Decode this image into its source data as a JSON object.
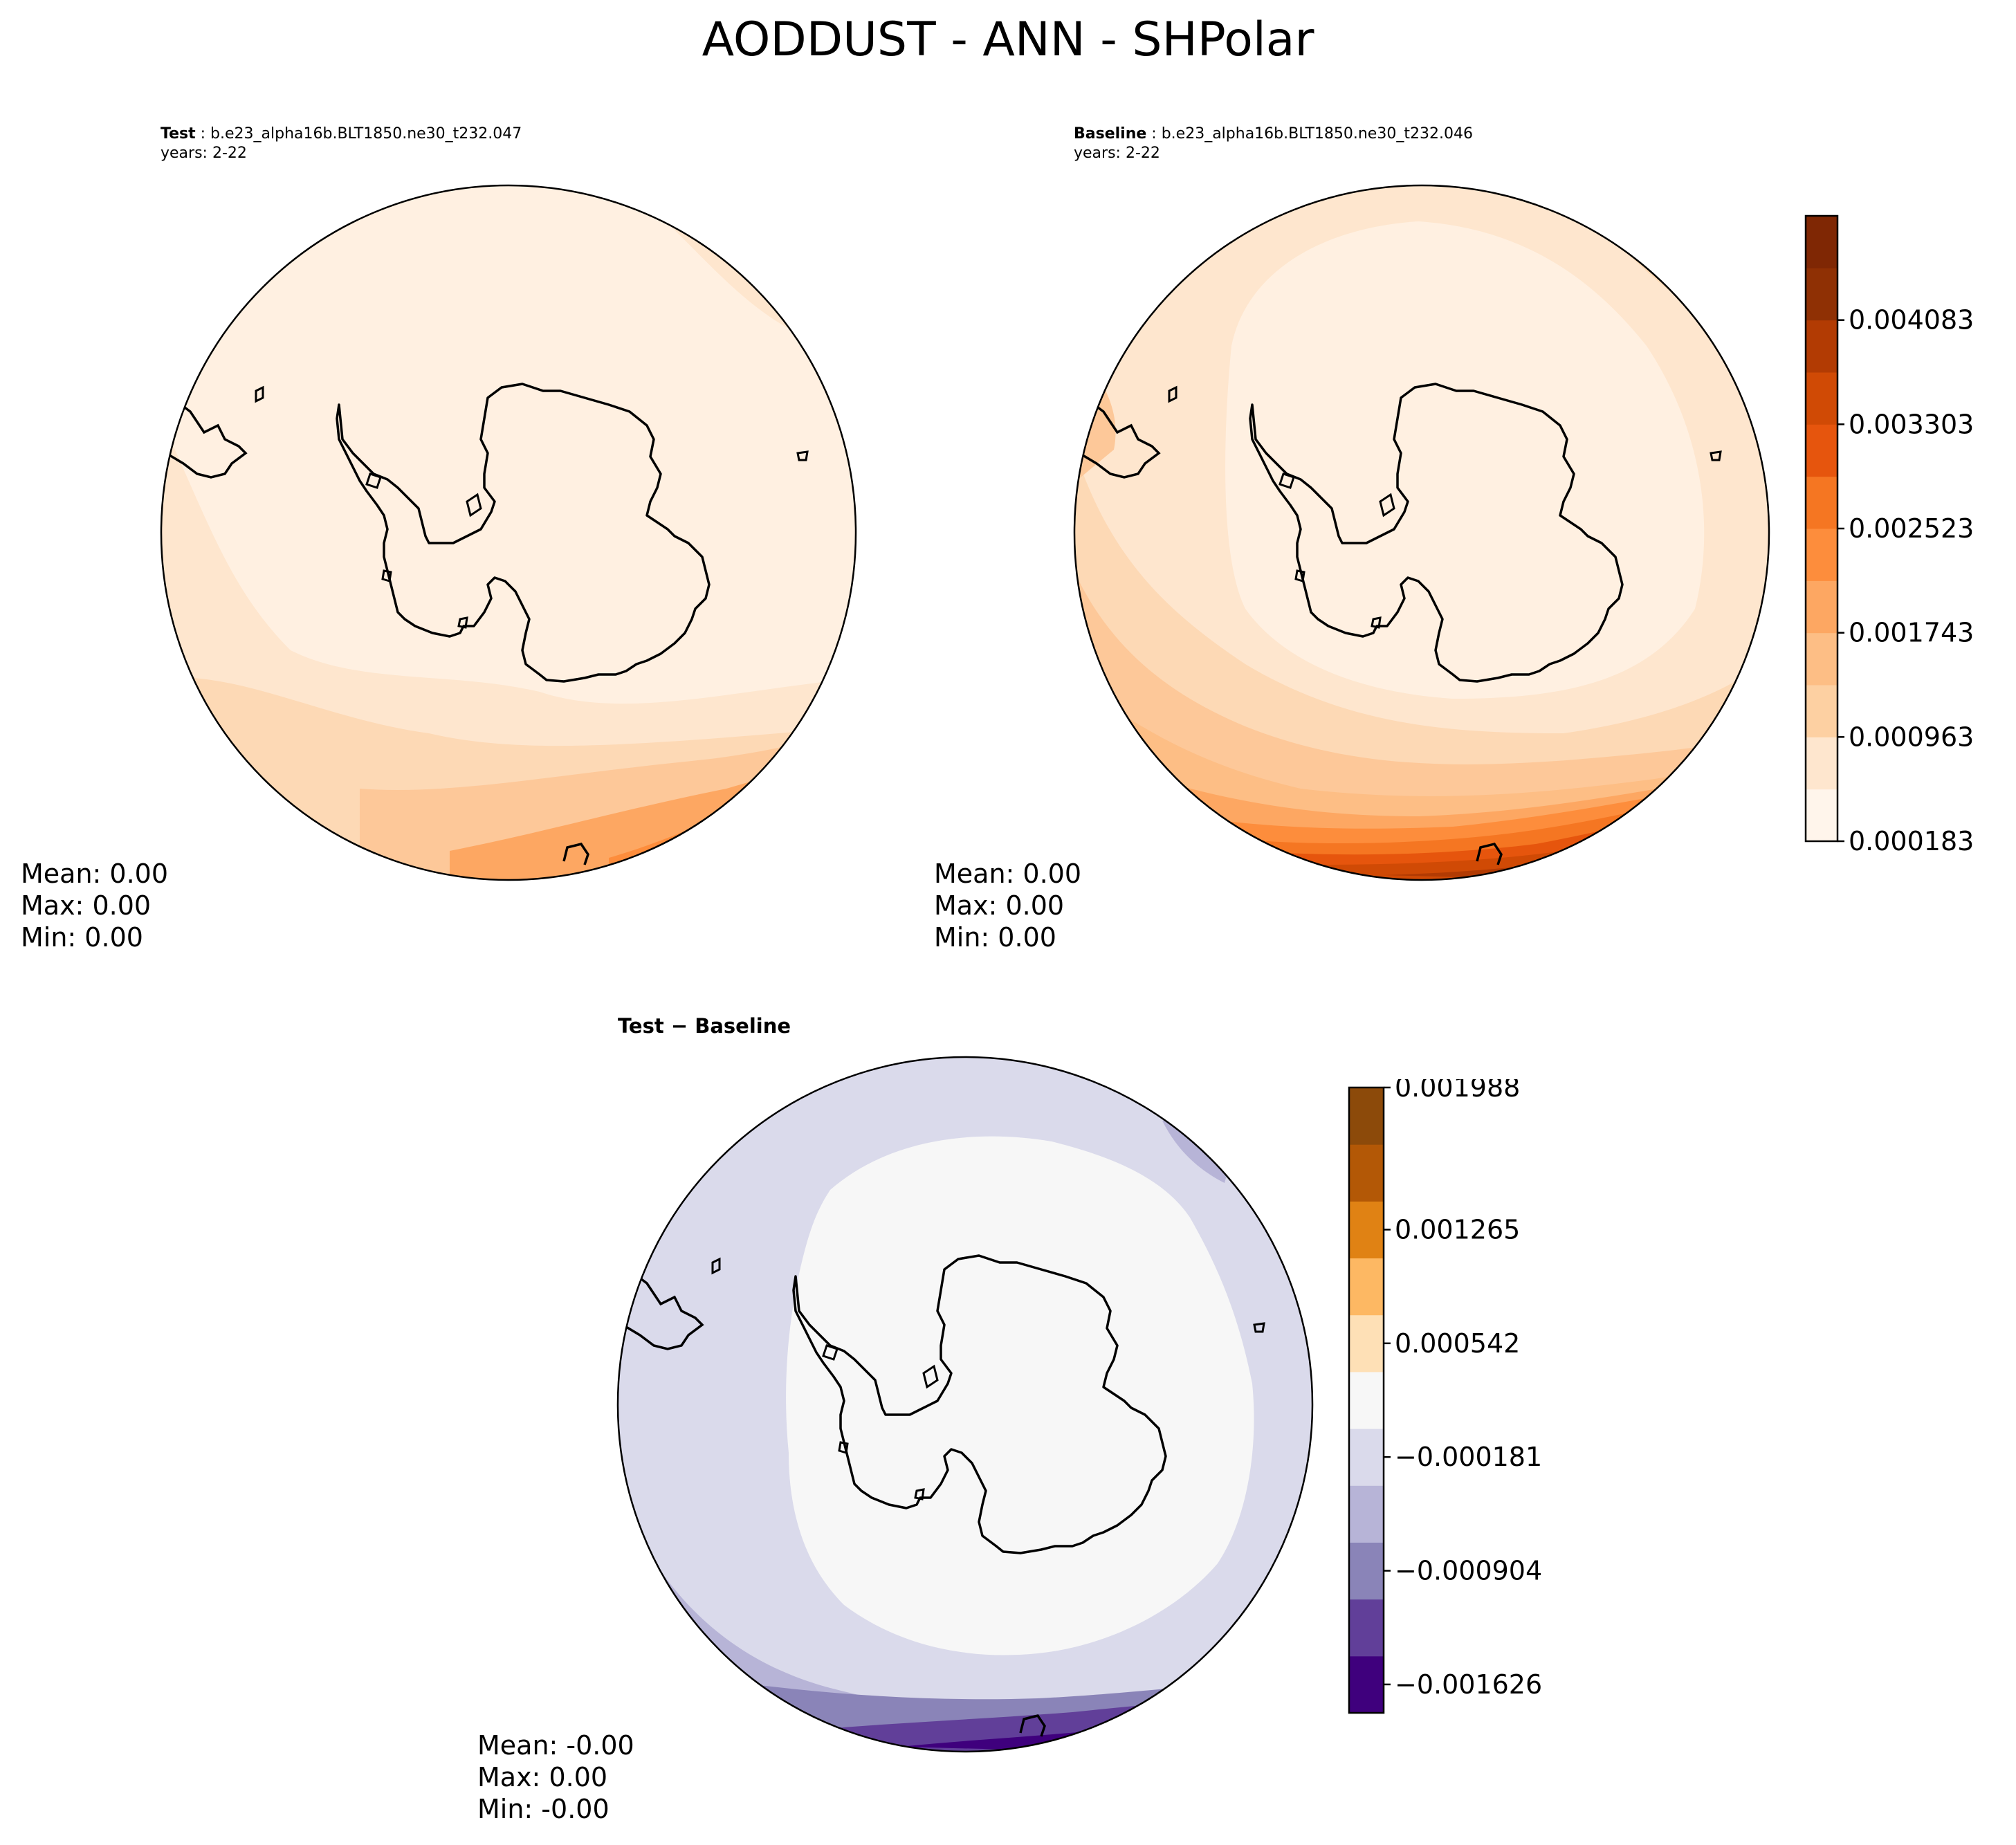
{
  "figure": {
    "title": "AODDUST - ANN - SHPolar"
  },
  "panels": {
    "test": {
      "label": "Test",
      "case": "b.e23_alpha16b.BLT1850.ne30_t232.047",
      "years": "years: 2-22",
      "stats": {
        "mean": "Mean:  0.00",
        "max": "Max:  0.00",
        "min": "Min:  0.00"
      }
    },
    "baseline": {
      "label": "Baseline",
      "case": "b.e23_alpha16b.BLT1850.ne30_t232.046",
      "years": "years: 2-22",
      "stats": {
        "mean": "Mean:  0.00",
        "max": "Max:  0.00",
        "min": "Min:  0.00"
      }
    },
    "diff": {
      "title": "Test − Baseline",
      "stats": {
        "mean": "Mean: -0.00",
        "max": "Max:  0.00",
        "min": "Min: -0.00"
      }
    }
  },
  "colorbars": {
    "main": {
      "tick_labels": [
        "0.000183",
        "0.000963",
        "0.001743",
        "0.002523",
        "0.003303",
        "0.004083"
      ],
      "colors": [
        "#fff5eb",
        "#fee6ce",
        "#fdd0a2",
        "#fdbe85",
        "#fda762",
        "#fd8d3c",
        "#f57622",
        "#e6550d",
        "#d04a05",
        "#b23b03",
        "#8f3004",
        "#7f2704"
      ]
    },
    "diff": {
      "tick_labels": [
        "−0.001626",
        "−0.000904",
        "−0.000181",
        "0.000542",
        "0.001265",
        "0.001988"
      ],
      "colors": [
        "#3f007d",
        "#613f99",
        "#8a84b8",
        "#b7b4d7",
        "#dadaeb",
        "#f7f7f7",
        "#fee0b6",
        "#fdb863",
        "#e08214",
        "#b35806",
        "#8c4a0a"
      ]
    }
  }
}
